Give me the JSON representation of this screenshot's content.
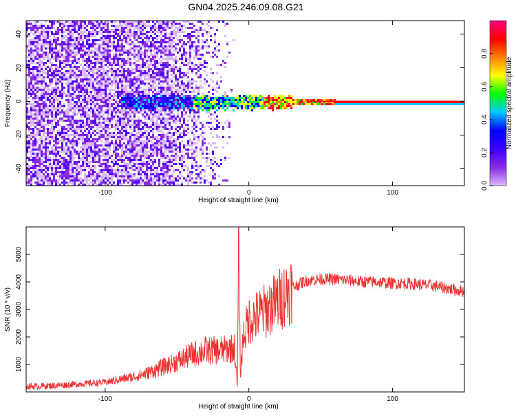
{
  "title": "GN04.2025.246.09.08.G21",
  "chart_data": [
    {
      "type": "heatmap",
      "xlabel": "Height of straight line (km)",
      "ylabel": "Frequency (Hz)",
      "xlim": [
        -155,
        150
      ],
      "ylim": [
        -50,
        48
      ],
      "x_ticks": [
        -100,
        0,
        100
      ],
      "y_ticks": [
        -40,
        -20,
        0,
        20,
        40
      ],
      "colorbar": {
        "label": "Normalized spectral amplitude",
        "range": [
          0,
          1
        ],
        "ticks": [
          0.0,
          0.2,
          0.4,
          0.6,
          0.8
        ],
        "tick_labels": [
          "0.0",
          "0.2",
          "0.4",
          "0.6",
          "0.8"
        ],
        "colormap": [
          "#ffffff",
          "#d8b8ff",
          "#8a2be2",
          "#3b00ff",
          "#0000ff",
          "#00c8ff",
          "#00ff00",
          "#ffff00",
          "#ff8000",
          "#ff0000",
          "#ff0080"
        ]
      },
      "description_points": {
        "noise_region_x": [
          -155,
          -10
        ],
        "signal_line_frequency_hz": 0,
        "signal_start_x": -90,
        "strong_signal_x": [
          0,
          150
        ]
      }
    },
    {
      "type": "line",
      "xlabel": "Height of straight line (km)",
      "ylabel": "SNR (10 * v/v)",
      "xlim": [
        -155,
        150
      ],
      "ylim": [
        0,
        6000
      ],
      "x_ticks": [
        -100,
        0,
        100
      ],
      "y_ticks": [
        1000,
        2000,
        3000,
        4000,
        5000
      ],
      "series": [
        {
          "color": "#ee3333",
          "x": [
            -155,
            -140,
            -120,
            -100,
            -90,
            -80,
            -70,
            -60,
            -50,
            -40,
            -30,
            -20,
            -10,
            -8,
            -7,
            -6,
            -4,
            0,
            10,
            20,
            30,
            40,
            50,
            60,
            70,
            80,
            90,
            100,
            110,
            120,
            130,
            140,
            150
          ],
          "y": [
            200,
            220,
            280,
            350,
            450,
            550,
            700,
            900,
            1100,
            1350,
            1500,
            1500,
            1600,
            200,
            5800,
            600,
            2000,
            2600,
            2900,
            3300,
            3800,
            4050,
            4100,
            4100,
            4050,
            4000,
            4000,
            3950,
            3950,
            3900,
            3850,
            3750,
            3650
          ]
        }
      ]
    }
  ]
}
